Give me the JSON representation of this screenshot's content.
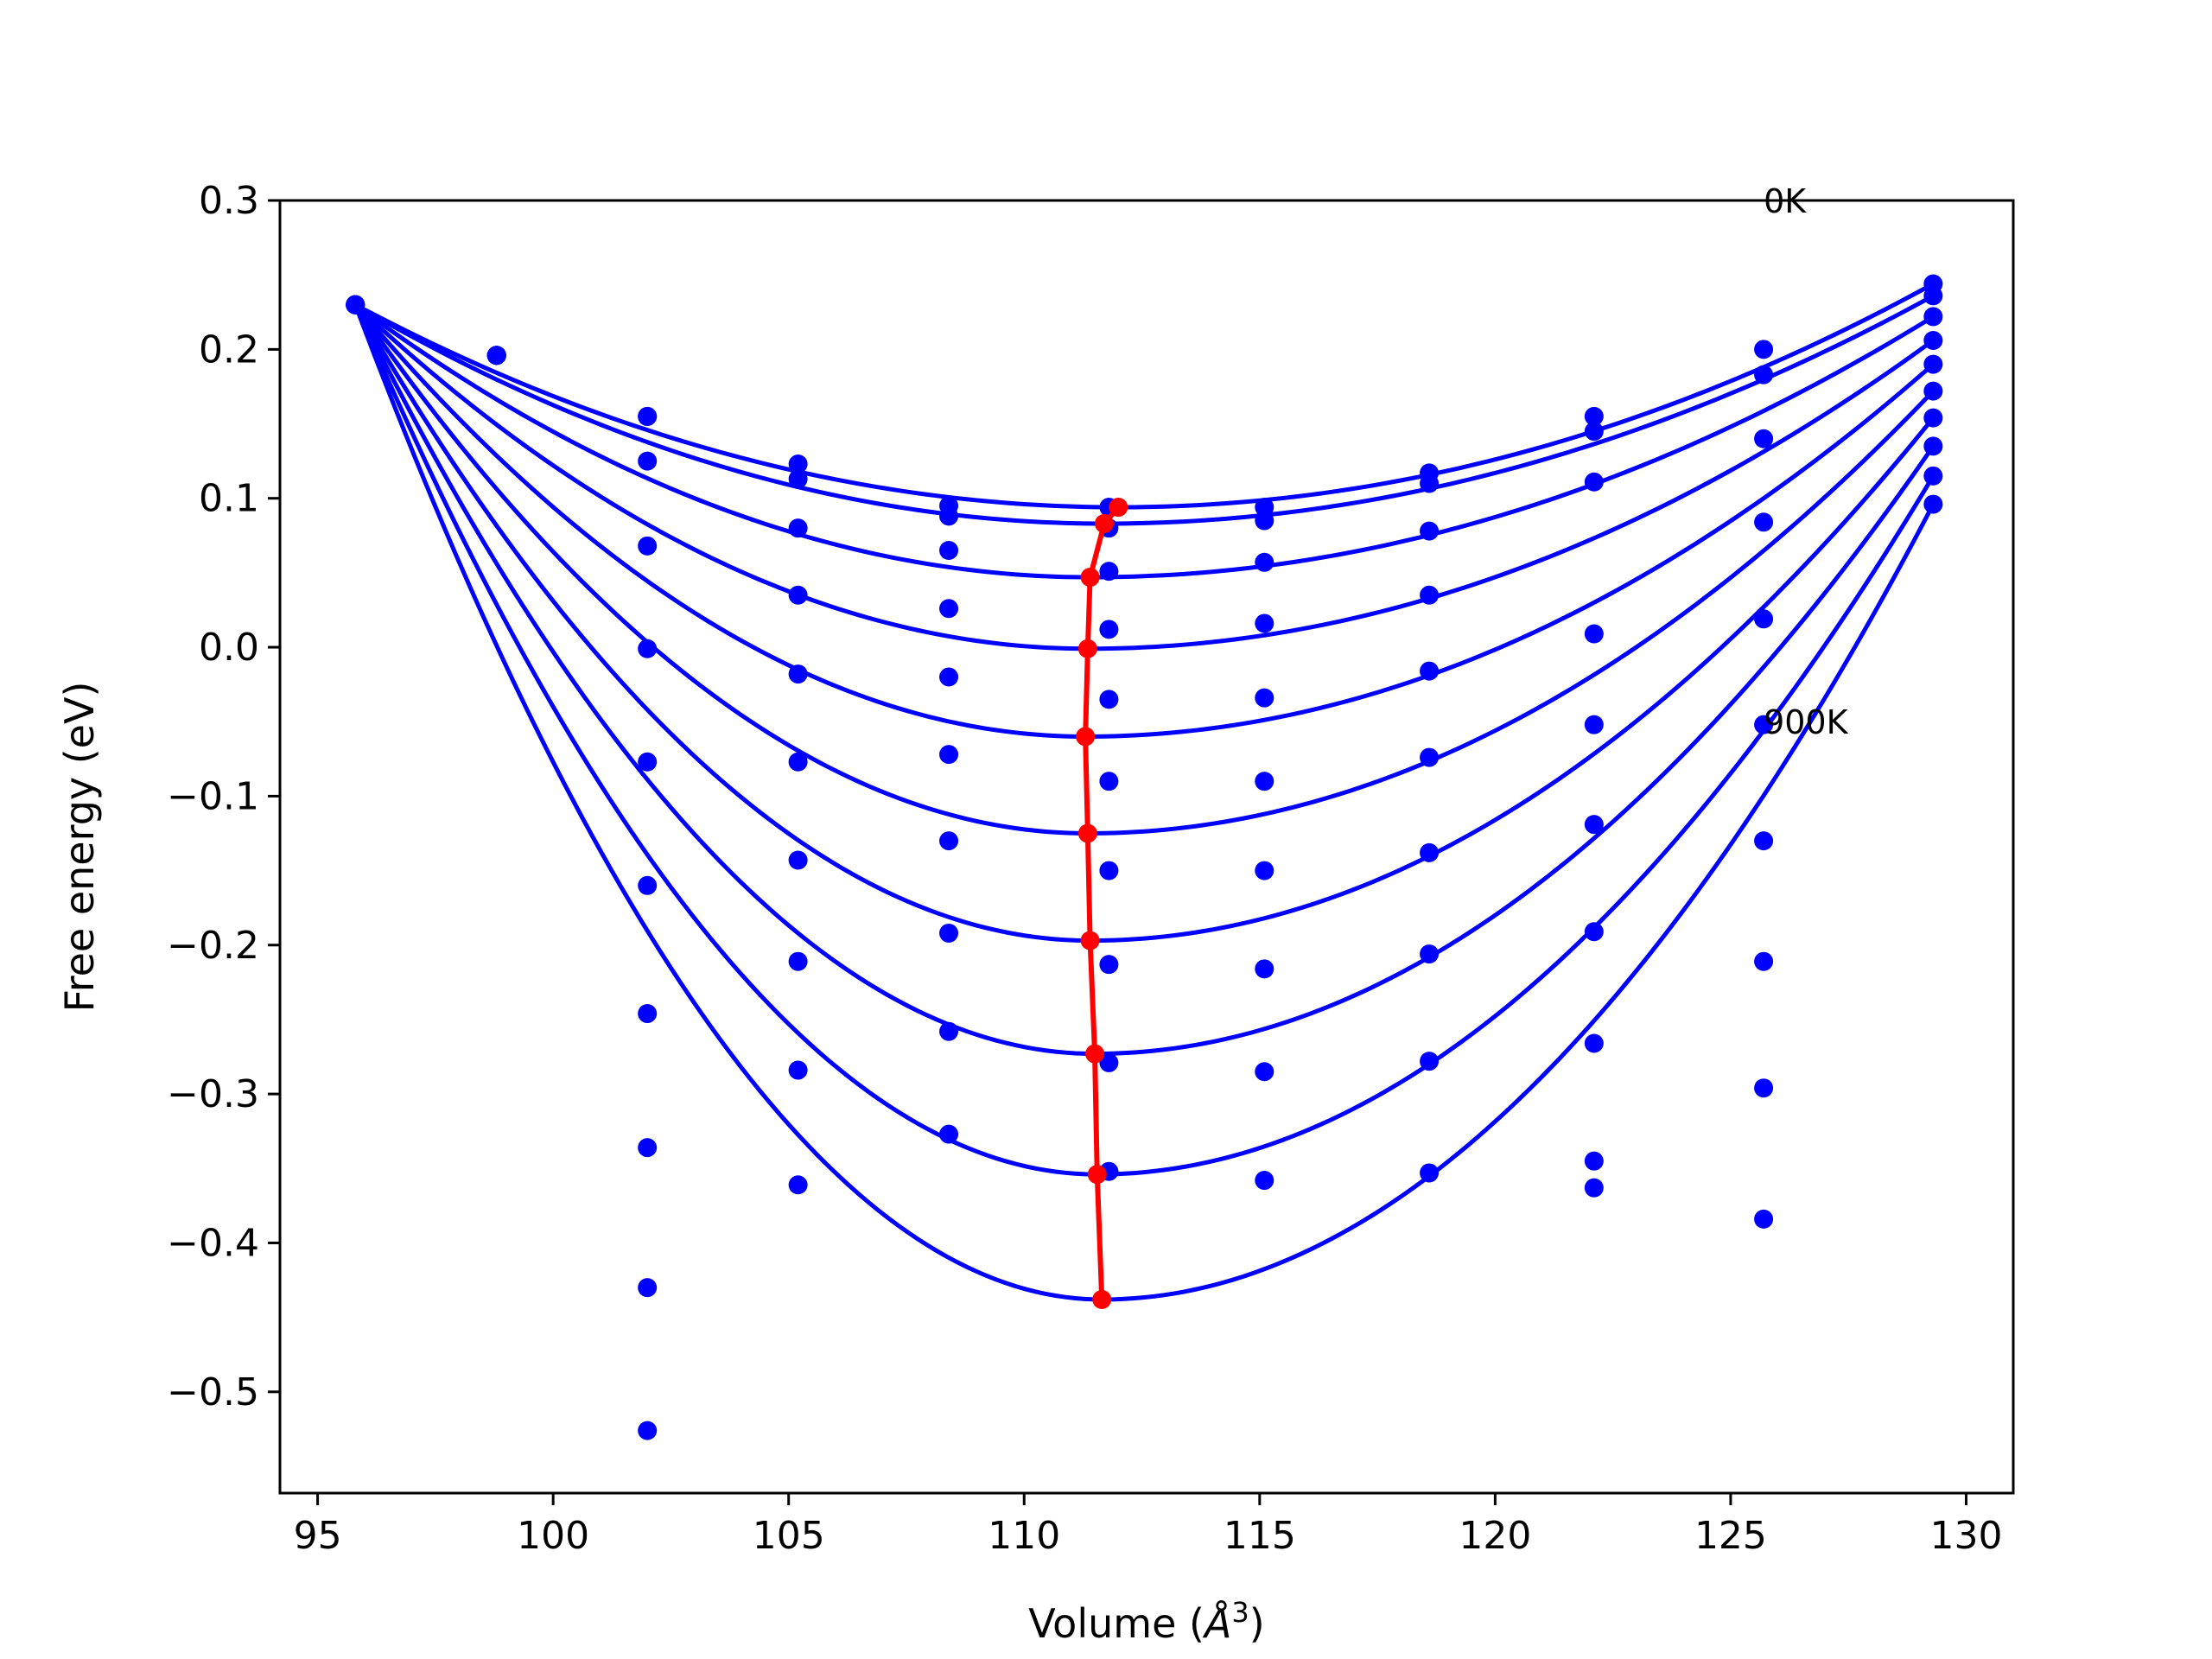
{
  "chart_data": {
    "type": "scatter",
    "xlabel": "Volume (Å³)",
    "xlabel_main": "Volume (",
    "xlabel_unit": "Å",
    "xlabel_exp": "3",
    "xlabel_close": ")",
    "ylabel": "Free energy (eV)",
    "xlim": [
      94.2,
      131.0
    ],
    "ylim": [
      -0.568,
      0.3
    ],
    "xticks": [
      95,
      100,
      105,
      110,
      115,
      120,
      125,
      130
    ],
    "yticks": [
      0.3,
      0.2,
      0.1,
      0.0,
      -0.1,
      -0.2,
      -0.3,
      -0.4,
      -0.5
    ],
    "ytick_labels": [
      "0.3",
      "0.2",
      "0.1",
      "0.0",
      "−0.1",
      "−0.2",
      "−0.3",
      "−0.4",
      "−0.5"
    ],
    "grid": false,
    "fit_color": "#0000ff",
    "minima_color": "#ff0000",
    "annotations": [
      {
        "text": "0K",
        "x": 125.7,
        "y": 0.3
      },
      {
        "text": "900K",
        "x": 125.7,
        "y": -0.05
      }
    ],
    "volumes": [
      95.8,
      98.8,
      102.0,
      105.2,
      108.4,
      111.8,
      115.1,
      118.6,
      122.1,
      125.7,
      129.3
    ],
    "series": [
      {
        "min_v": 112.0,
        "min_f": 0.094,
        "energies": [
          0.23,
          0.196,
          0.155,
          0.123,
          0.095,
          0.094,
          0.094,
          0.117,
          0.155,
          0.2,
          0.244
        ]
      },
      {
        "min_v": 111.7,
        "min_f": 0.083,
        "energies": [
          0.23,
          0.196,
          0.155,
          0.113,
          0.088,
          0.08,
          0.085,
          0.11,
          0.145,
          0.183,
          0.236
        ]
      },
      {
        "min_v": 111.4,
        "min_f": 0.047,
        "energies": [
          0.23,
          0.196,
          0.125,
          0.08,
          0.065,
          0.051,
          0.057,
          0.078,
          0.111,
          0.14,
          0.222
        ]
      },
      {
        "min_v": 111.35,
        "min_f": -0.001,
        "energies": [
          0.23,
          0.196,
          0.068,
          0.035,
          0.026,
          0.012,
          0.016,
          0.035,
          0.009,
          0.084,
          0.206
        ]
      },
      {
        "min_v": 111.3,
        "min_f": -0.06,
        "energies": [
          0.23,
          0.196,
          -0.001,
          -0.018,
          -0.02,
          -0.035,
          -0.034,
          -0.016,
          -0.052,
          0.019,
          0.19
        ]
      },
      {
        "min_v": 111.35,
        "min_f": -0.125,
        "energies": [
          0.23,
          0.196,
          -0.077,
          -0.077,
          -0.072,
          -0.09,
          -0.09,
          -0.074,
          -0.119,
          -0.052,
          0.172
        ]
      },
      {
        "min_v": 111.4,
        "min_f": -0.197,
        "energies": [
          0.23,
          0.196,
          -0.16,
          -0.143,
          -0.13,
          -0.15,
          -0.15,
          -0.138,
          -0.191,
          -0.13,
          0.154
        ]
      },
      {
        "min_v": 111.5,
        "min_f": -0.273,
        "energies": [
          0.23,
          0.196,
          -0.246,
          -0.211,
          -0.192,
          -0.213,
          -0.216,
          -0.206,
          -0.266,
          -0.211,
          0.135
        ]
      },
      {
        "min_v": 111.55,
        "min_f": -0.354,
        "energies": [
          0.23,
          0.196,
          -0.336,
          -0.284,
          -0.258,
          -0.279,
          -0.285,
          -0.278,
          -0.345,
          -0.296,
          0.115
        ]
      },
      {
        "min_v": 111.65,
        "min_f": -0.438,
        "energies": [
          0.23,
          0.196,
          -0.43,
          -0.361,
          -0.327,
          -0.352,
          -0.358,
          -0.353,
          -0.363,
          -0.384,
          0.096
        ]
      },
      {
        "min_v": null,
        "min_f": null,
        "energies": [
          null,
          null,
          -0.526,
          null,
          null,
          null,
          null,
          null,
          null,
          null,
          null
        ]
      }
    ]
  }
}
